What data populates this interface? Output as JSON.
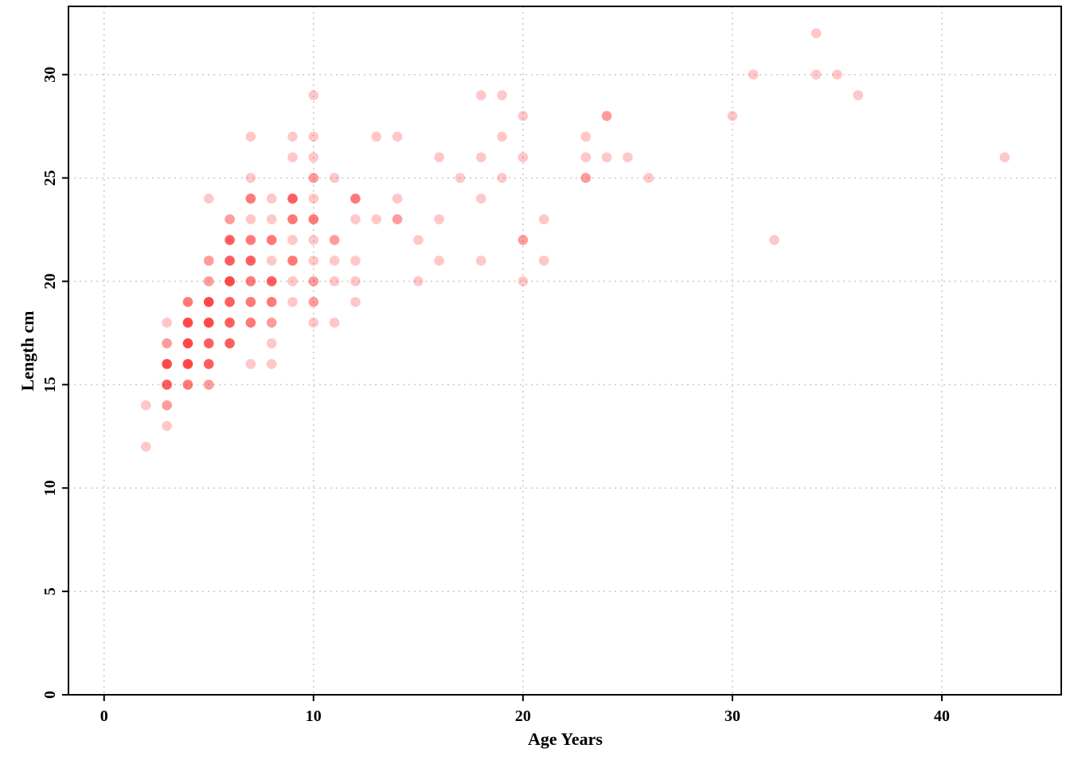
{
  "chart_data": {
    "type": "scatter",
    "title": "",
    "xlabel": "Age Years",
    "ylabel": "Length cm",
    "xlim": [
      -1.7,
      45.7
    ],
    "ylim": [
      0,
      33.3
    ],
    "xticks": [
      0,
      10,
      20,
      30,
      40
    ],
    "yticks": [
      0,
      5,
      10,
      15,
      20,
      25,
      30
    ],
    "grid": true,
    "point_color": "#ff0000",
    "point_alpha": 0.22,
    "series": [
      {
        "values": [
          [
            2,
            12
          ],
          [
            2,
            14
          ],
          [
            3,
            13
          ],
          [
            3,
            14
          ],
          [
            3,
            14
          ],
          [
            3,
            15
          ],
          [
            3,
            15
          ],
          [
            3,
            15
          ],
          [
            3,
            15
          ],
          [
            3,
            16
          ],
          [
            3,
            16
          ],
          [
            3,
            16
          ],
          [
            3,
            16
          ],
          [
            3,
            16
          ],
          [
            3,
            17
          ],
          [
            3,
            17
          ],
          [
            3,
            18
          ],
          [
            4,
            15
          ],
          [
            4,
            15
          ],
          [
            4,
            15
          ],
          [
            4,
            16
          ],
          [
            4,
            16
          ],
          [
            4,
            16
          ],
          [
            4,
            16
          ],
          [
            4,
            16
          ],
          [
            4,
            17
          ],
          [
            4,
            17
          ],
          [
            4,
            17
          ],
          [
            4,
            17
          ],
          [
            4,
            17
          ],
          [
            4,
            18
          ],
          [
            4,
            18
          ],
          [
            4,
            18
          ],
          [
            4,
            18
          ],
          [
            4,
            18
          ],
          [
            4,
            19
          ],
          [
            4,
            19
          ],
          [
            4,
            19
          ],
          [
            5,
            15
          ],
          [
            5,
            15
          ],
          [
            5,
            16
          ],
          [
            5,
            16
          ],
          [
            5,
            16
          ],
          [
            5,
            16
          ],
          [
            5,
            17
          ],
          [
            5,
            17
          ],
          [
            5,
            17
          ],
          [
            5,
            17
          ],
          [
            5,
            18
          ],
          [
            5,
            18
          ],
          [
            5,
            18
          ],
          [
            5,
            18
          ],
          [
            5,
            18
          ],
          [
            5,
            19
          ],
          [
            5,
            19
          ],
          [
            5,
            19
          ],
          [
            5,
            19
          ],
          [
            5,
            19
          ],
          [
            5,
            20
          ],
          [
            5,
            20
          ],
          [
            5,
            21
          ],
          [
            5,
            21
          ],
          [
            5,
            24
          ],
          [
            6,
            17
          ],
          [
            6,
            17
          ],
          [
            6,
            17
          ],
          [
            6,
            17
          ],
          [
            6,
            18
          ],
          [
            6,
            18
          ],
          [
            6,
            18
          ],
          [
            6,
            18
          ],
          [
            6,
            19
          ],
          [
            6,
            19
          ],
          [
            6,
            19
          ],
          [
            6,
            19
          ],
          [
            6,
            20
          ],
          [
            6,
            20
          ],
          [
            6,
            20
          ],
          [
            6,
            20
          ],
          [
            6,
            20
          ],
          [
            6,
            21
          ],
          [
            6,
            21
          ],
          [
            6,
            21
          ],
          [
            6,
            21
          ],
          [
            6,
            22
          ],
          [
            6,
            22
          ],
          [
            6,
            22
          ],
          [
            6,
            22
          ],
          [
            6,
            23
          ],
          [
            6,
            23
          ],
          [
            7,
            16
          ],
          [
            7,
            18
          ],
          [
            7,
            18
          ],
          [
            7,
            18
          ],
          [
            7,
            19
          ],
          [
            7,
            19
          ],
          [
            7,
            19
          ],
          [
            7,
            20
          ],
          [
            7,
            20
          ],
          [
            7,
            20
          ],
          [
            7,
            21
          ],
          [
            7,
            21
          ],
          [
            7,
            21
          ],
          [
            7,
            21
          ],
          [
            7,
            22
          ],
          [
            7,
            22
          ],
          [
            7,
            22
          ],
          [
            7,
            23
          ],
          [
            7,
            24
          ],
          [
            7,
            24
          ],
          [
            7,
            24
          ],
          [
            7,
            25
          ],
          [
            7,
            27
          ],
          [
            8,
            16
          ],
          [
            8,
            17
          ],
          [
            8,
            18
          ],
          [
            8,
            18
          ],
          [
            8,
            19
          ],
          [
            8,
            19
          ],
          [
            8,
            19
          ],
          [
            8,
            20
          ],
          [
            8,
            20
          ],
          [
            8,
            20
          ],
          [
            8,
            20
          ],
          [
            8,
            21
          ],
          [
            8,
            22
          ],
          [
            8,
            22
          ],
          [
            8,
            22
          ],
          [
            8,
            23
          ],
          [
            8,
            24
          ],
          [
            9,
            19
          ],
          [
            9,
            20
          ],
          [
            9,
            21
          ],
          [
            9,
            21
          ],
          [
            9,
            21
          ],
          [
            9,
            22
          ],
          [
            9,
            23
          ],
          [
            9,
            23
          ],
          [
            9,
            23
          ],
          [
            9,
            24
          ],
          [
            9,
            24
          ],
          [
            9,
            24
          ],
          [
            9,
            24
          ],
          [
            9,
            26
          ],
          [
            9,
            27
          ],
          [
            10,
            18
          ],
          [
            10,
            19
          ],
          [
            10,
            19
          ],
          [
            10,
            20
          ],
          [
            10,
            20
          ],
          [
            10,
            21
          ],
          [
            10,
            22
          ],
          [
            10,
            23
          ],
          [
            10,
            23
          ],
          [
            10,
            23
          ],
          [
            10,
            24
          ],
          [
            10,
            25
          ],
          [
            10,
            25
          ],
          [
            10,
            26
          ],
          [
            10,
            27
          ],
          [
            10,
            29
          ],
          [
            11,
            18
          ],
          [
            11,
            20
          ],
          [
            11,
            21
          ],
          [
            11,
            22
          ],
          [
            11,
            22
          ],
          [
            11,
            25
          ],
          [
            12,
            19
          ],
          [
            12,
            20
          ],
          [
            12,
            21
          ],
          [
            12,
            23
          ],
          [
            12,
            24
          ],
          [
            12,
            24
          ],
          [
            12,
            24
          ],
          [
            13,
            23
          ],
          [
            13,
            27
          ],
          [
            14,
            23
          ],
          [
            14,
            23
          ],
          [
            14,
            24
          ],
          [
            14,
            27
          ],
          [
            15,
            20
          ],
          [
            15,
            22
          ],
          [
            16,
            21
          ],
          [
            16,
            23
          ],
          [
            16,
            26
          ],
          [
            17,
            25
          ],
          [
            18,
            21
          ],
          [
            18,
            24
          ],
          [
            18,
            26
          ],
          [
            18,
            29
          ],
          [
            19,
            25
          ],
          [
            19,
            27
          ],
          [
            19,
            29
          ],
          [
            20,
            20
          ],
          [
            20,
            22
          ],
          [
            20,
            22
          ],
          [
            20,
            26
          ],
          [
            20,
            28
          ],
          [
            21,
            21
          ],
          [
            21,
            23
          ],
          [
            23,
            25
          ],
          [
            23,
            25
          ],
          [
            23,
            26
          ],
          [
            23,
            27
          ],
          [
            24,
            26
          ],
          [
            24,
            28
          ],
          [
            24,
            28
          ],
          [
            25,
            26
          ],
          [
            26,
            25
          ],
          [
            30,
            28
          ],
          [
            31,
            30
          ],
          [
            32,
            22
          ],
          [
            34,
            30
          ],
          [
            34,
            32
          ],
          [
            35,
            30
          ],
          [
            36,
            29
          ],
          [
            43,
            26
          ]
        ]
      }
    ]
  }
}
